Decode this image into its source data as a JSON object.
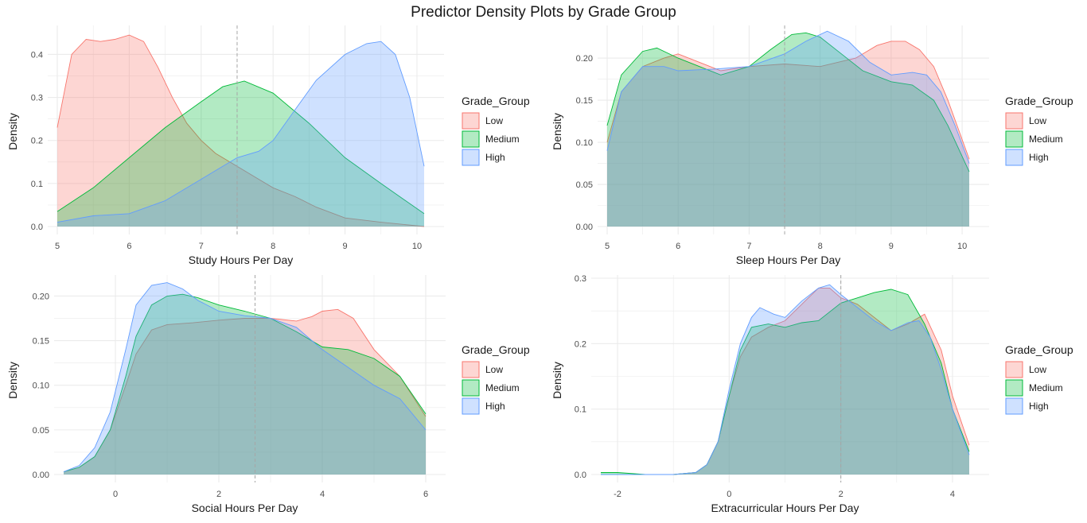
{
  "figure": {
    "title": "Predictor Density Plots by Grade Group",
    "colors": {
      "Low": "#F8766D",
      "Medium": "#00BA38",
      "High": "#619CFF",
      "grid": "#EBEBEB",
      "text": "#4D4D4D",
      "vline": "#A6A6A6"
    }
  },
  "chart_data": [
    {
      "type": "area",
      "title": "",
      "xlabel": "Study Hours Per Day",
      "ylabel": "Density",
      "xlim": [
        5,
        10.1
      ],
      "ylim": [
        0,
        0.46
      ],
      "xticks": [
        5,
        6,
        7,
        8,
        9,
        10
      ],
      "yticks": [
        0.0,
        0.1,
        0.2,
        0.3,
        0.4
      ],
      "ytick_labels": [
        "0.0",
        "0.1",
        "0.2",
        "0.3",
        "0.4"
      ],
      "vline": 7.5,
      "grid": true,
      "legend": {
        "title": "Grade_Group",
        "position": "right",
        "entries": [
          "Low",
          "Medium",
          "High"
        ]
      },
      "series": [
        {
          "name": "Low",
          "x": [
            5.0,
            5.2,
            5.4,
            5.6,
            5.8,
            6.0,
            6.2,
            6.4,
            6.6,
            6.8,
            7.0,
            7.2,
            7.5,
            7.8,
            8.0,
            8.3,
            8.6,
            9.0,
            9.5,
            10.1
          ],
          "y": [
            0.23,
            0.4,
            0.435,
            0.43,
            0.435,
            0.445,
            0.43,
            0.37,
            0.3,
            0.24,
            0.2,
            0.17,
            0.14,
            0.11,
            0.09,
            0.07,
            0.045,
            0.02,
            0.01,
            0.0
          ]
        },
        {
          "name": "Medium",
          "x": [
            5.0,
            5.5,
            6.0,
            6.5,
            7.0,
            7.3,
            7.6,
            8.0,
            8.5,
            9.0,
            9.5,
            10.1
          ],
          "y": [
            0.035,
            0.09,
            0.16,
            0.23,
            0.29,
            0.325,
            0.338,
            0.31,
            0.24,
            0.16,
            0.1,
            0.03
          ]
        },
        {
          "name": "High",
          "x": [
            5.0,
            5.5,
            6.0,
            6.5,
            7.0,
            7.5,
            7.8,
            8.0,
            8.3,
            8.6,
            9.0,
            9.3,
            9.5,
            9.7,
            9.9,
            10.1
          ],
          "y": [
            0.01,
            0.025,
            0.03,
            0.06,
            0.11,
            0.16,
            0.175,
            0.2,
            0.27,
            0.34,
            0.4,
            0.425,
            0.43,
            0.4,
            0.3,
            0.14
          ]
        }
      ]
    },
    {
      "type": "area",
      "title": "",
      "xlabel": "Sleep Hours Per Day",
      "ylabel": "Density",
      "xlim": [
        5,
        10.1
      ],
      "ylim": [
        0,
        0.235
      ],
      "xticks": [
        5,
        6,
        7,
        8,
        9,
        10
      ],
      "yticks": [
        0.0,
        0.05,
        0.1,
        0.15,
        0.2
      ],
      "ytick_labels": [
        "0.00",
        "0.05",
        "0.10",
        "0.15",
        "0.20"
      ],
      "vline": 7.5,
      "grid": true,
      "legend": {
        "title": "Grade_Group",
        "position": "right",
        "entries": [
          "Low",
          "Medium",
          "High"
        ]
      },
      "series": [
        {
          "name": "Low",
          "x": [
            5.0,
            5.2,
            5.5,
            5.8,
            6.0,
            6.3,
            6.6,
            7.0,
            7.5,
            8.0,
            8.5,
            8.8,
            9.0,
            9.2,
            9.4,
            9.6,
            9.8,
            10.1
          ],
          "y": [
            0.1,
            0.16,
            0.19,
            0.2,
            0.205,
            0.195,
            0.185,
            0.19,
            0.193,
            0.19,
            0.2,
            0.215,
            0.22,
            0.22,
            0.21,
            0.19,
            0.15,
            0.08
          ]
        },
        {
          "name": "Medium",
          "x": [
            5.0,
            5.2,
            5.5,
            5.7,
            6.0,
            6.3,
            6.6,
            7.0,
            7.3,
            7.6,
            7.8,
            8.0,
            8.3,
            8.6,
            9.0,
            9.3,
            9.6,
            9.8,
            10.1
          ],
          "y": [
            0.12,
            0.18,
            0.208,
            0.212,
            0.2,
            0.19,
            0.18,
            0.19,
            0.21,
            0.228,
            0.23,
            0.225,
            0.205,
            0.185,
            0.172,
            0.168,
            0.15,
            0.12,
            0.065
          ]
        },
        {
          "name": "High",
          "x": [
            5.0,
            5.2,
            5.5,
            5.8,
            6.0,
            6.5,
            7.0,
            7.5,
            7.8,
            8.1,
            8.4,
            8.7,
            9.0,
            9.3,
            9.5,
            9.7,
            9.9,
            10.1
          ],
          "y": [
            0.09,
            0.16,
            0.19,
            0.19,
            0.185,
            0.187,
            0.19,
            0.205,
            0.22,
            0.232,
            0.22,
            0.195,
            0.18,
            0.183,
            0.18,
            0.16,
            0.12,
            0.075
          ]
        }
      ]
    },
    {
      "type": "area",
      "title": "",
      "xlabel": "Social Hours Per Day",
      "ylabel": "Density",
      "xlim": [
        -1,
        6
      ],
      "ylim": [
        0,
        0.22
      ],
      "xticks": [
        0,
        2,
        4,
        6
      ],
      "yticks": [
        0.0,
        0.05,
        0.1,
        0.15,
        0.2
      ],
      "ytick_labels": [
        "0.00",
        "0.05",
        "0.10",
        "0.15",
        "0.20"
      ],
      "vline": 2.7,
      "grid": true,
      "legend": {
        "title": "Grade_Group",
        "position": "right",
        "entries": [
          "Low",
          "Medium",
          "High"
        ]
      },
      "series": [
        {
          "name": "Low",
          "x": [
            -1.0,
            -0.7,
            -0.4,
            -0.1,
            0.2,
            0.4,
            0.7,
            1.0,
            1.5,
            2.0,
            2.5,
            3.0,
            3.5,
            3.8,
            4.0,
            4.3,
            4.6,
            5.0,
            5.5,
            6.0
          ],
          "y": [
            0.003,
            0.008,
            0.02,
            0.05,
            0.1,
            0.135,
            0.162,
            0.168,
            0.17,
            0.173,
            0.175,
            0.175,
            0.172,
            0.177,
            0.183,
            0.185,
            0.175,
            0.14,
            0.11,
            0.065
          ]
        },
        {
          "name": "Medium",
          "x": [
            -1.0,
            -0.7,
            -0.4,
            -0.1,
            0.2,
            0.4,
            0.7,
            1.0,
            1.3,
            1.6,
            2.0,
            2.5,
            3.0,
            3.5,
            4.0,
            4.5,
            5.0,
            5.5,
            6.0
          ],
          "y": [
            0.003,
            0.008,
            0.02,
            0.05,
            0.11,
            0.155,
            0.19,
            0.2,
            0.202,
            0.198,
            0.19,
            0.183,
            0.175,
            0.16,
            0.143,
            0.14,
            0.13,
            0.11,
            0.068
          ]
        },
        {
          "name": "High",
          "x": [
            -1.0,
            -0.7,
            -0.4,
            -0.1,
            0.2,
            0.4,
            0.7,
            1.0,
            1.3,
            1.6,
            2.0,
            2.5,
            3.0,
            3.5,
            4.0,
            4.5,
            5.0,
            5.5,
            6.0
          ],
          "y": [
            0.003,
            0.01,
            0.03,
            0.07,
            0.14,
            0.19,
            0.212,
            0.215,
            0.208,
            0.195,
            0.183,
            0.178,
            0.175,
            0.165,
            0.14,
            0.12,
            0.1,
            0.085,
            0.05
          ]
        }
      ]
    },
    {
      "type": "area",
      "title": "",
      "xlabel": "Extracurricular Hours Per Day",
      "ylabel": "Density",
      "xlim": [
        -2.3,
        4.3
      ],
      "ylim": [
        0,
        0.3
      ],
      "xticks": [
        -2,
        0,
        2,
        4
      ],
      "yticks": [
        0.0,
        0.1,
        0.2,
        0.3
      ],
      "ytick_labels": [
        "0.0",
        "0.1",
        "0.2",
        "0.3"
      ],
      "vline": 2.0,
      "grid": true,
      "legend": {
        "title": "Grade_Group",
        "position": "right",
        "entries": [
          "Low",
          "Medium",
          "High"
        ]
      },
      "series": [
        {
          "name": "Low",
          "x": [
            -2.3,
            -1.5,
            -1.0,
            -0.6,
            -0.4,
            -0.2,
            0.0,
            0.2,
            0.4,
            0.7,
            1.0,
            1.3,
            1.6,
            1.8,
            2.0,
            2.3,
            2.6,
            2.9,
            3.2,
            3.5,
            3.8,
            4.0,
            4.3
          ],
          "y": [
            0.0,
            0.0,
            0.0,
            0.003,
            0.015,
            0.05,
            0.12,
            0.18,
            0.21,
            0.225,
            0.235,
            0.26,
            0.285,
            0.285,
            0.27,
            0.26,
            0.24,
            0.22,
            0.23,
            0.245,
            0.19,
            0.12,
            0.045
          ]
        },
        {
          "name": "Medium",
          "x": [
            -2.3,
            -2.0,
            -1.5,
            -1.0,
            -0.6,
            -0.4,
            -0.2,
            0.0,
            0.2,
            0.4,
            0.7,
            1.0,
            1.3,
            1.6,
            2.0,
            2.3,
            2.6,
            2.9,
            3.2,
            3.5,
            3.8,
            4.0,
            4.3
          ],
          "y": [
            0.003,
            0.003,
            0.0,
            0.0,
            0.003,
            0.015,
            0.05,
            0.12,
            0.19,
            0.225,
            0.23,
            0.225,
            0.232,
            0.235,
            0.262,
            0.27,
            0.278,
            0.283,
            0.275,
            0.23,
            0.17,
            0.1,
            0.035
          ]
        },
        {
          "name": "High",
          "x": [
            -2.3,
            -1.5,
            -1.0,
            -0.6,
            -0.4,
            -0.2,
            0.0,
            0.2,
            0.4,
            0.55,
            0.8,
            1.0,
            1.3,
            1.6,
            1.8,
            2.0,
            2.3,
            2.6,
            2.9,
            3.2,
            3.4,
            3.6,
            3.8,
            4.0,
            4.3
          ],
          "y": [
            0.0,
            0.0,
            0.0,
            0.003,
            0.015,
            0.05,
            0.13,
            0.2,
            0.24,
            0.255,
            0.245,
            0.24,
            0.265,
            0.285,
            0.29,
            0.275,
            0.255,
            0.235,
            0.22,
            0.232,
            0.235,
            0.21,
            0.16,
            0.1,
            0.03
          ]
        }
      ]
    }
  ]
}
